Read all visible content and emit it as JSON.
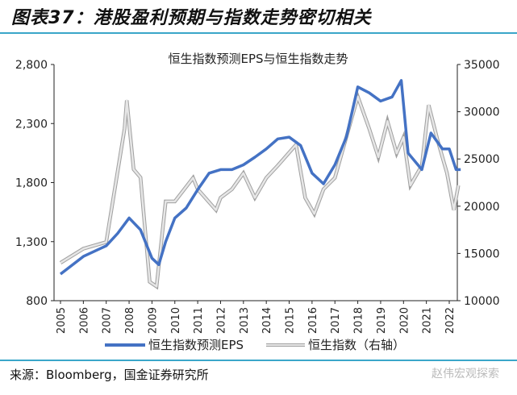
{
  "header": {
    "title": "图表37：港股盈利预期与指数走势密切相关"
  },
  "footer": {
    "source": "来源：Bloomberg，国金证券研究所",
    "watermark": "赵伟宏观探索"
  },
  "chart_data": {
    "type": "line",
    "title": "恒生指数预测EPS与恒生指数走势",
    "x_ticks": [
      "2005",
      "2006",
      "2007",
      "2008",
      "2009",
      "2010",
      "2011",
      "2012",
      "2013",
      "2014",
      "2015",
      "2016",
      "2017",
      "2018",
      "2019",
      "2020",
      "2021",
      "2022"
    ],
    "y_left": {
      "ylim": [
        800,
        2800
      ],
      "ticks": [
        "2,800",
        "2,300",
        "1,800",
        "1,300",
        "800"
      ]
    },
    "y_right": {
      "ylim": [
        10000,
        35000
      ],
      "ticks": [
        "35000",
        "30000",
        "25000",
        "20000",
        "15000",
        "10000"
      ]
    },
    "grid": false,
    "legend": "bottom",
    "series": [
      {
        "name": "恒生指数预测EPS",
        "axis": "left",
        "color": "#4472c4",
        "x": [
          2005.0,
          2006.0,
          2007.0,
          2007.5,
          2008.0,
          2008.5,
          2009.0,
          2009.3,
          2009.6,
          2010.0,
          2010.5,
          2011.0,
          2011.5,
          2012.0,
          2012.5,
          2013.0,
          2013.5,
          2014.0,
          2014.5,
          2015.0,
          2015.5,
          2016.0,
          2016.5,
          2017.0,
          2017.5,
          2018.0,
          2018.5,
          2019.0,
          2019.5,
          2019.9,
          2020.2,
          2020.8,
          2021.2,
          2021.7,
          2022.0,
          2022.3,
          2022.5
        ],
        "y": [
          1025,
          1175,
          1265,
          1370,
          1500,
          1400,
          1160,
          1105,
          1300,
          1500,
          1585,
          1740,
          1880,
          1910,
          1910,
          1950,
          2015,
          2085,
          2170,
          2185,
          2115,
          1880,
          1790,
          1950,
          2185,
          2610,
          2560,
          2490,
          2525,
          2665,
          2050,
          1910,
          2220,
          2085,
          2085,
          1910,
          1910
        ]
      },
      {
        "name": "恒生指数（右轴）",
        "axis": "right",
        "color": "#bfbfbf",
        "x": [
          2005.0,
          2006.0,
          2007.0,
          2007.8,
          2007.9,
          2008.2,
          2008.5,
          2008.9,
          2009.2,
          2009.6,
          2010.0,
          2010.8,
          2011.0,
          2011.8,
          2012.0,
          2012.5,
          2013.0,
          2013.5,
          2014.0,
          2014.5,
          2015.3,
          2015.7,
          2016.1,
          2016.5,
          2017.0,
          2017.5,
          2018.0,
          2018.5,
          2018.9,
          2019.3,
          2019.7,
          2020.0,
          2020.3,
          2020.8,
          2021.1,
          2021.5,
          2021.9,
          2022.2,
          2022.4
        ],
        "y": [
          14000,
          15500,
          16200,
          28200,
          31200,
          23900,
          23050,
          12000,
          11500,
          20500,
          20500,
          23000,
          21800,
          19600,
          20900,
          21800,
          23500,
          20900,
          23000,
          24300,
          26500,
          20900,
          19200,
          21800,
          23000,
          27300,
          31600,
          28200,
          25200,
          29000,
          25600,
          27300,
          22200,
          24300,
          30700,
          26900,
          23500,
          19600,
          22200
        ]
      }
    ]
  }
}
